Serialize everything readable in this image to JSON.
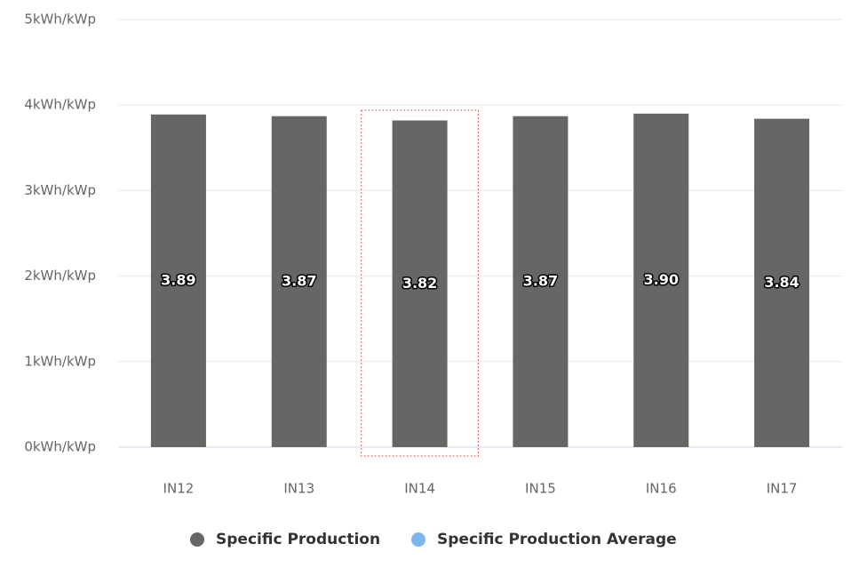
{
  "chart_data": {
    "type": "bar",
    "categories": [
      "IN12",
      "IN13",
      "IN14",
      "IN15",
      "IN16",
      "IN17"
    ],
    "series": [
      {
        "name": "Specific Production",
        "color": "#666666",
        "values": [
          3.89,
          3.87,
          3.82,
          3.87,
          3.9,
          3.84
        ],
        "value_labels": [
          "3.89",
          "3.87",
          "3.82",
          "3.87",
          "3.90",
          "3.84"
        ]
      },
      {
        "name": "Specific Production Average",
        "color": "#7cb5ec",
        "values": [
          null,
          null,
          null,
          null,
          null,
          null
        ]
      }
    ],
    "ylim": [
      0,
      5
    ],
    "yticks": [
      {
        "value": 0,
        "label": "0kWh/kWp"
      },
      {
        "value": 1,
        "label": "1kWh/kWp"
      },
      {
        "value": 2,
        "label": "2kWh/kWp"
      },
      {
        "value": 3,
        "label": "3kWh/kWp"
      },
      {
        "value": 4,
        "label": "4kWh/kWp"
      },
      {
        "value": 5,
        "label": "5kWh/kWp"
      }
    ],
    "grid": true
  }
}
